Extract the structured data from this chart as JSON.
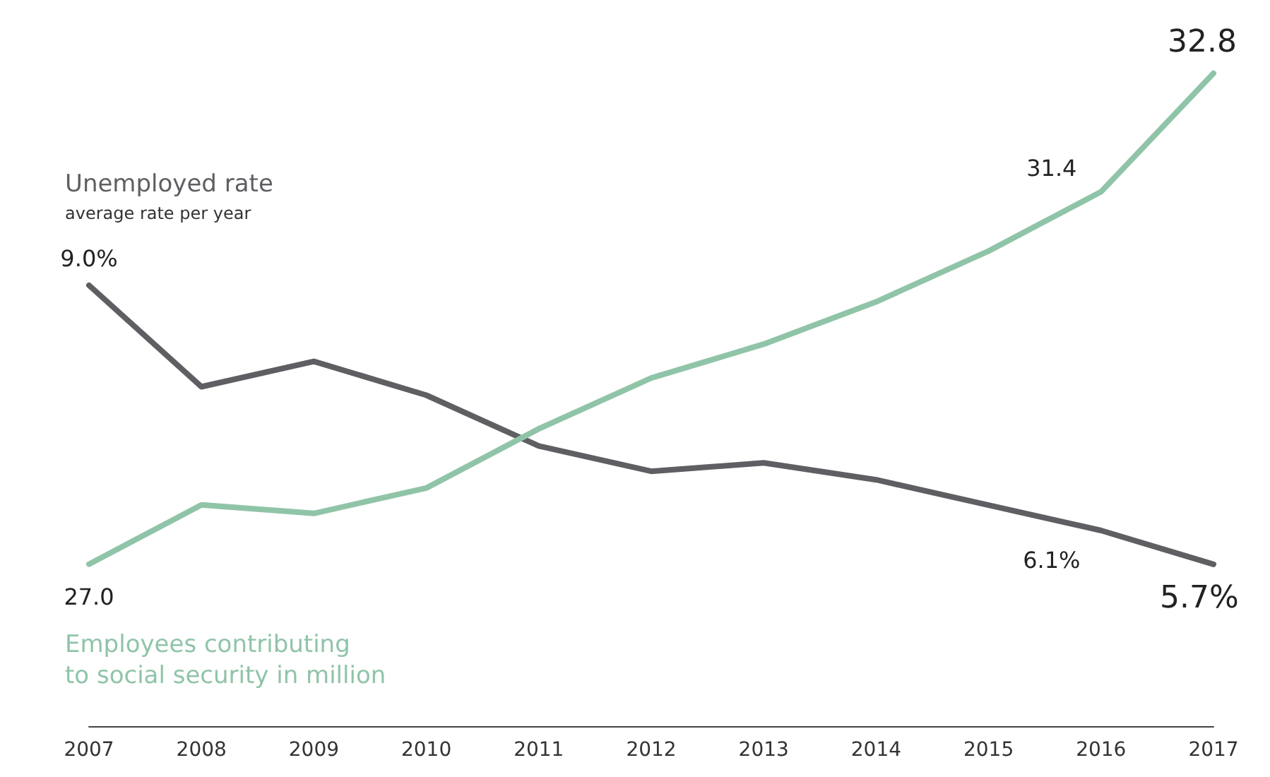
{
  "chart_data": {
    "type": "line",
    "categories": [
      "2007",
      "2008",
      "2009",
      "2010",
      "2011",
      "2012",
      "2013",
      "2014",
      "2015",
      "2016",
      "2017"
    ],
    "series": [
      {
        "name": "Unemployed rate",
        "color": "#5f5e62",
        "axis": "y2",
        "values": [
          9.0,
          7.8,
          8.1,
          7.7,
          7.1,
          6.8,
          6.9,
          6.7,
          6.4,
          6.1,
          5.7
        ],
        "value_labels": [
          "9.0%",
          null,
          null,
          null,
          null,
          null,
          null,
          null,
          null,
          "6.1%",
          "5.7%"
        ]
      },
      {
        "name": "Employees contributing\nto social security in million",
        "color": "#90c4a8",
        "values": [
          27.0,
          27.7,
          27.6,
          27.9,
          28.6,
          29.2,
          29.6,
          30.1,
          30.7,
          31.4,
          32.8
        ],
        "value_labels": [
          "27.0",
          null,
          null,
          null,
          null,
          null,
          null,
          null,
          null,
          "31.4",
          "32.8"
        ]
      }
    ],
    "annotations": [
      "average rate per year"
    ],
    "tick_labels": "x",
    "grid": false,
    "legend": false,
    "marker": "none",
    "line_style": "solid"
  }
}
